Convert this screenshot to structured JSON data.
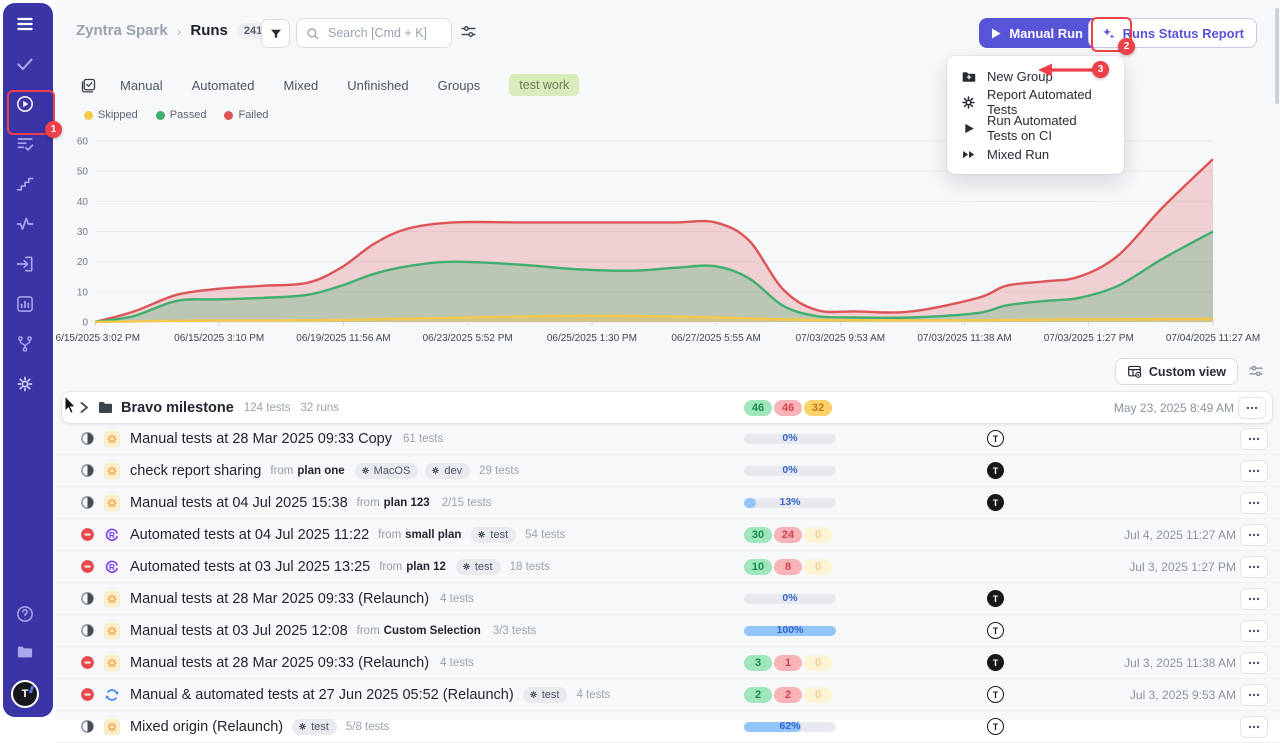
{
  "sidebar": {
    "top_icons": [
      {
        "name": "menu-icon",
        "tone": "bright"
      },
      {
        "name": "check-icon",
        "tone": "normal"
      },
      {
        "name": "play-circle-icon",
        "tone": "bright"
      },
      {
        "name": "list-check-icon",
        "tone": "normal"
      },
      {
        "name": "steps-icon",
        "tone": "normal"
      },
      {
        "name": "activity-icon",
        "tone": "normal"
      },
      {
        "name": "import-icon",
        "tone": "normal"
      },
      {
        "name": "bar-chart-icon",
        "tone": "normal"
      },
      {
        "name": "branch-icon",
        "tone": "normal"
      },
      {
        "name": "gear-icon",
        "tone": "soft"
      }
    ],
    "bottom_icons": [
      {
        "name": "help-icon",
        "tone": "normal"
      },
      {
        "name": "folder-icon",
        "tone": "normal"
      }
    ],
    "avatar_letter": "T"
  },
  "header": {
    "breadcrumb": {
      "project": "Zyntra Spark",
      "separator": "›",
      "page": "Runs",
      "count": "241"
    },
    "search_placeholder": "Search [Cmd + K]",
    "buttons": {
      "manual_run": "Manual Run",
      "runs_status_report": "Runs Status Report"
    }
  },
  "dropdown_menu": {
    "items": [
      {
        "icon": "folder-plus-icon",
        "label": "New Group"
      },
      {
        "icon": "gear-burst-icon",
        "label": "Report Automated Tests"
      },
      {
        "icon": "play-icon",
        "label": "Run Automated Tests on CI"
      },
      {
        "icon": "double-play-icon",
        "label": "Mixed Run"
      }
    ]
  },
  "annotations": {
    "step1": "1",
    "step2": "2",
    "step3": "3"
  },
  "filter_tabs": {
    "tabs": [
      "Manual",
      "Automated",
      "Mixed",
      "Unfinished",
      "Groups"
    ],
    "active_chip": "test work"
  },
  "chart_data": {
    "type": "area",
    "title": "",
    "xlabel": "",
    "ylabel": "",
    "ylim": [
      0,
      60
    ],
    "y_ticks": [
      0,
      10,
      20,
      30,
      40,
      50,
      60
    ],
    "grid": "horizontal",
    "legend_position": "top-left",
    "x_labels": [
      "06/15/2025 3:02 PM",
      "06/15/2025 3:10 PM",
      "06/19/2025 11:56 AM",
      "06/23/2025 5:52 PM",
      "06/25/2025 1:30 PM",
      "06/27/2025 5:55 AM",
      "07/03/2025 9:53 AM",
      "07/03/2025 11:38 AM",
      "07/03/2025 1:27 PM",
      "07/04/2025 11:27 AM"
    ],
    "series": [
      {
        "name": "Skipped",
        "color": "#f2c94c",
        "values": [
          0,
          0.5,
          0.7,
          1.5,
          2,
          1.5,
          0.6,
          0.5,
          0.8,
          1
        ]
      },
      {
        "name": "Passed",
        "color": "#3fae6e",
        "values": [
          0,
          7.5,
          12,
          17.5,
          18,
          18.5,
          1.5,
          2,
          7.5,
          30
        ]
      },
      {
        "name": "Failed",
        "color": "#dd5456",
        "values": [
          0,
          11,
          18,
          33,
          33,
          33,
          3.5,
          4,
          13,
          54
        ]
      }
    ],
    "samples": {
      "x": [
        0,
        0.035,
        0.073,
        0.11,
        0.15,
        0.19,
        0.22,
        0.25,
        0.28,
        0.32,
        0.38,
        0.43,
        0.48,
        0.52,
        0.555,
        0.585,
        0.615,
        0.645,
        0.68,
        0.73,
        0.79,
        0.815,
        0.85,
        0.88,
        0.915,
        0.955,
        1
      ],
      "failed": [
        0,
        3.5,
        9,
        11,
        12,
        13,
        18,
        26,
        31,
        33,
        33,
        33,
        33,
        33,
        33,
        27,
        11,
        4,
        3.5,
        3.5,
        8,
        12,
        13.5,
        15,
        22,
        38,
        54
      ],
      "passed": [
        0,
        2,
        7,
        7.5,
        8,
        9,
        12,
        16,
        18.5,
        20,
        19,
        17.5,
        17,
        18,
        18.5,
        14.5,
        5.5,
        2,
        1.5,
        1.5,
        3,
        5.5,
        7,
        8,
        12,
        21,
        30
      ],
      "skipped": [
        0,
        0.2,
        0.4,
        0.5,
        0.5,
        0.6,
        0.7,
        0.9,
        1.1,
        1.4,
        1.8,
        2.1,
        2,
        1.8,
        1.5,
        1.2,
        0.9,
        0.7,
        0.6,
        0.5,
        0.6,
        0.7,
        0.8,
        0.9,
        0.9,
        1,
        1
      ]
    }
  },
  "toolbar": {
    "custom_view": "Custom view"
  },
  "table": {
    "group_row": {
      "title": "Bravo milestone",
      "tests": "124 tests",
      "runs": "32 runs",
      "pills": {
        "passed": "46",
        "failed": "46",
        "skipped": "32"
      },
      "date": "May 23, 2025 8:49 AM"
    },
    "rows": [
      {
        "status": "in-progress",
        "type": "manual",
        "title": "Manual tests at 28 Mar 2025 09:33 Copy",
        "from": "",
        "plan": "",
        "badges": [],
        "tests": "61 tests",
        "result": {
          "kind": "progress",
          "label": "0%",
          "pct": 0
        },
        "avatar": "outline",
        "date": ""
      },
      {
        "status": "in-progress",
        "type": "manual",
        "title": "check report sharing",
        "from": "from",
        "plan": "plan one",
        "badges": [
          "MacOS",
          "dev"
        ],
        "tests": "29 tests",
        "result": {
          "kind": "progress",
          "label": "0%",
          "pct": 0
        },
        "avatar": "filled",
        "date": ""
      },
      {
        "status": "in-progress",
        "type": "manual",
        "title": "Manual tests at 04 Jul 2025 15:38",
        "from": "from",
        "plan": "plan 123",
        "badges": [],
        "tests": "2/15 tests",
        "result": {
          "kind": "progress",
          "label": "13%",
          "pct": 13
        },
        "avatar": "filled",
        "date": ""
      },
      {
        "status": "stopped",
        "type": "automated",
        "title": "Automated tests at 04 Jul 2025 11:22",
        "from": "from",
        "plan": "small plan",
        "badges": [
          "test"
        ],
        "tests": "54 tests",
        "result": {
          "kind": "pills",
          "passed": "30",
          "failed": "24",
          "skipped": "0"
        },
        "avatar": null,
        "date": "Jul 4, 2025 11:27 AM"
      },
      {
        "status": "stopped",
        "type": "automated",
        "title": "Automated tests at 03 Jul 2025 13:25",
        "from": "from",
        "plan": "plan 12",
        "badges": [
          "test"
        ],
        "tests": "18 tests",
        "result": {
          "kind": "pills",
          "passed": "10",
          "failed": "8",
          "skipped": "0"
        },
        "avatar": null,
        "date": "Jul 3, 2025 1:27 PM"
      },
      {
        "status": "in-progress",
        "type": "manual",
        "title": "Manual tests at 28 Mar 2025 09:33 (Relaunch)",
        "from": "",
        "plan": "",
        "badges": [],
        "tests": "4 tests",
        "result": {
          "kind": "progress",
          "label": "0%",
          "pct": 0
        },
        "avatar": "filled",
        "date": ""
      },
      {
        "status": "in-progress",
        "type": "manual",
        "title": "Manual tests at 03 Jul 2025 12:08",
        "from": "from",
        "plan": "Custom Selection",
        "badges": [],
        "tests": "3/3 tests",
        "result": {
          "kind": "progress",
          "label": "100%",
          "pct": 100
        },
        "avatar": "outline",
        "date": ""
      },
      {
        "status": "stopped",
        "type": "manual",
        "title": "Manual tests at 28 Mar 2025 09:33 (Relaunch)",
        "from": "",
        "plan": "",
        "badges": [],
        "tests": "4 tests",
        "result": {
          "kind": "pills",
          "passed": "3",
          "failed": "1",
          "skipped": "0"
        },
        "avatar": "filled",
        "date": "Jul 3, 2025 11:38 AM"
      },
      {
        "status": "stopped",
        "type": "mixed",
        "title": "Manual & automated tests at 27 Jun 2025 05:52 (Relaunch)",
        "from": "",
        "plan": "",
        "badges": [
          "test"
        ],
        "tests": "4 tests",
        "result": {
          "kind": "pills",
          "passed": "2",
          "failed": "2",
          "skipped": "0"
        },
        "avatar": "outline",
        "date": "Jul 3, 2025 9:53 AM"
      },
      {
        "status": "in-progress",
        "type": "manual",
        "title": "Mixed origin (Relaunch)",
        "from": "",
        "plan": "",
        "badges": [
          "test"
        ],
        "tests": "5/8 tests",
        "result": {
          "kind": "progress",
          "label": "62%",
          "pct": 62
        },
        "avatar": "outline",
        "date": ""
      }
    ]
  }
}
